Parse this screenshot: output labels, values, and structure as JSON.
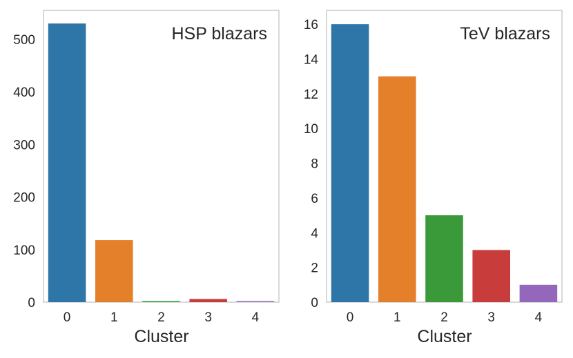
{
  "chart_data": [
    {
      "type": "bar",
      "title": "HSP blazars",
      "xlabel": "Cluster",
      "ylabel": "",
      "categories": [
        "0",
        "1",
        "2",
        "3",
        "4"
      ],
      "values": [
        530,
        118,
        2,
        6,
        2
      ],
      "colors": [
        "#2e75a8",
        "#e5802a",
        "#3a9a3a",
        "#c83c3c",
        "#9467bd"
      ],
      "ylim": [
        0,
        555
      ],
      "yticks": [
        0,
        100,
        200,
        300,
        400,
        500
      ],
      "grid": false,
      "legend": "none"
    },
    {
      "type": "bar",
      "title": "TeV blazars",
      "xlabel": "Cluster",
      "ylabel": "",
      "categories": [
        "0",
        "1",
        "2",
        "3",
        "4"
      ],
      "values": [
        16,
        13,
        5,
        3,
        1
      ],
      "colors": [
        "#2e75a8",
        "#e5802a",
        "#3a9a3a",
        "#c83c3c",
        "#9467bd"
      ],
      "ylim": [
        0,
        16.8
      ],
      "yticks": [
        0,
        2,
        4,
        6,
        8,
        10,
        12,
        14,
        16
      ],
      "grid": false,
      "legend": "none"
    }
  ]
}
